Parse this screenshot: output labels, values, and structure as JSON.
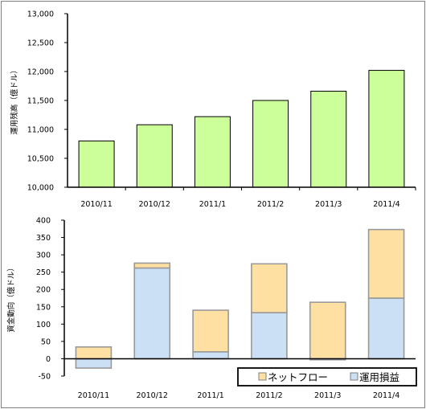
{
  "chart_data": [
    {
      "type": "bar",
      "ylabel": "運用残高（億ドル）",
      "categories": [
        "2010/11",
        "2010/12",
        "2011/1",
        "2011/2",
        "2011/3",
        "2011/4"
      ],
      "values": [
        10800,
        11080,
        11220,
        11500,
        11660,
        12020
      ],
      "ylim": [
        10000,
        13000
      ],
      "yticks": [
        "10,000",
        "10,500",
        "11,000",
        "11,500",
        "12,000",
        "12,500",
        "13,000"
      ],
      "color": "#ccff99"
    },
    {
      "type": "bar",
      "stacked": true,
      "ylabel": "資金動向（億ドル）",
      "categories": [
        "2010/11",
        "2010/12",
        "2011/1",
        "2011/2",
        "2011/3",
        "2011/4"
      ],
      "series": [
        {
          "name": "運用損益",
          "values": [
            -27,
            262,
            20,
            133,
            -3,
            175
          ],
          "color": "#cce0f5"
        },
        {
          "name": "ネットフロー",
          "values": [
            34,
            14,
            120,
            141,
            163,
            198
          ],
          "color": "#ffe0a3"
        }
      ],
      "ylim": [
        -50,
        400
      ],
      "yticks": [
        "-50",
        "0",
        "50",
        "100",
        "150",
        "200",
        "250",
        "300",
        "350",
        "400"
      ],
      "legend": "bottom-right"
    }
  ]
}
